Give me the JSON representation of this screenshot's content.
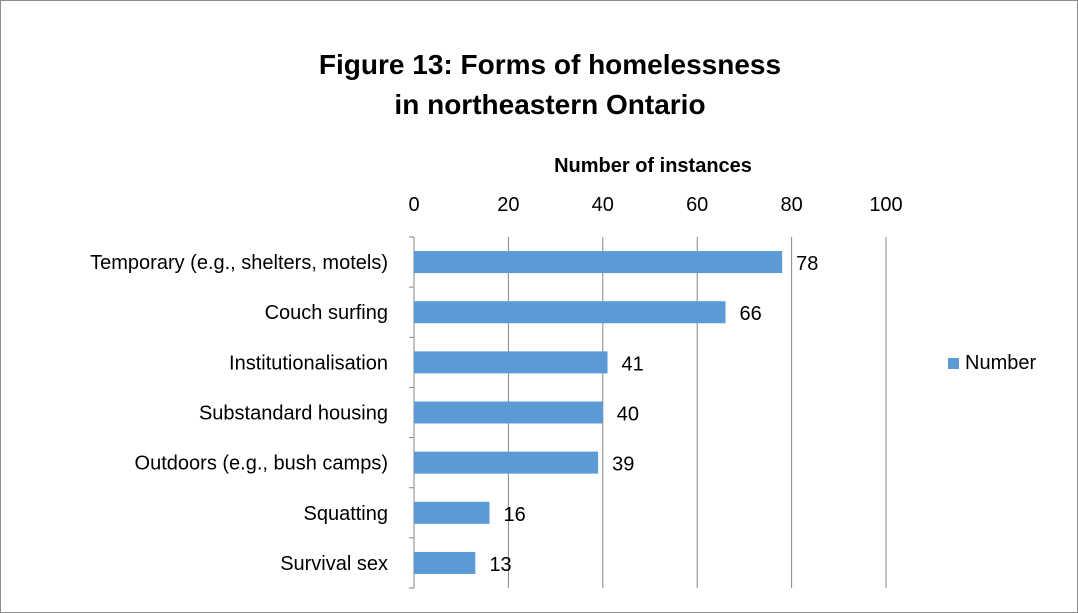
{
  "chart_data": {
    "type": "bar",
    "orientation": "horizontal",
    "title": [
      "Figure 13: Forms of homelessness",
      "in northeastern Ontario"
    ],
    "xlabel": "Number of instances",
    "xaxis_position": "top",
    "xlim": [
      0,
      100
    ],
    "xticks": [
      0,
      20,
      40,
      60,
      80,
      100
    ],
    "grid": true,
    "legend_position": "right",
    "categories": [
      "Temporary (e.g., shelters, motels)",
      "Couch surfing",
      "Institutionalisation",
      "Substandard housing",
      "Outdoors (e.g., bush camps)",
      "Squatting",
      "Survival sex"
    ],
    "series": [
      {
        "name": "Number",
        "values": [
          78,
          66,
          41,
          40,
          39,
          16,
          13
        ],
        "color": "#5b9bd5"
      }
    ]
  }
}
